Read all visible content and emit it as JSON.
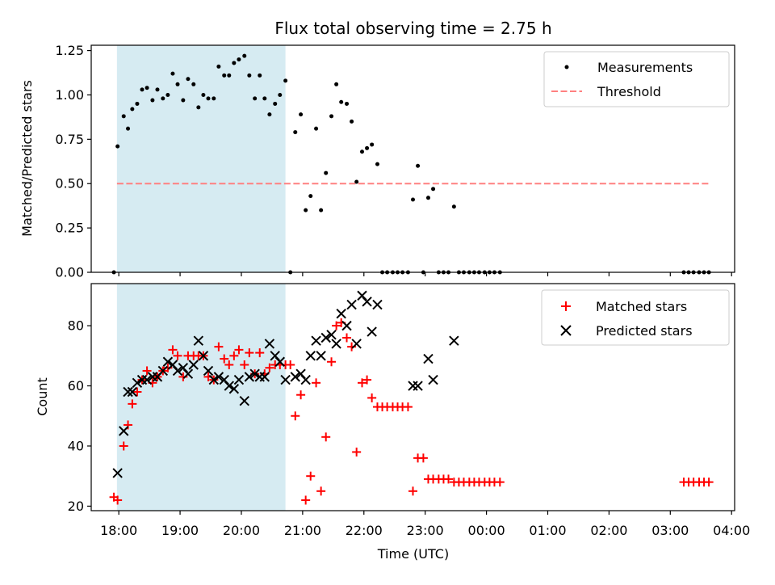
{
  "title": "Flux total observing time = 2.75 h",
  "colors": {
    "shade": "#add8e6",
    "threshold": "#ff8080",
    "measurement": "#000000",
    "matched": "#ff0000",
    "predicted": "#000000"
  },
  "chart_data": [
    {
      "type": "scatter",
      "title": "Flux total observing time = 2.75 h",
      "xlabel": "",
      "ylabel": "Matched/Predicted stars",
      "xlim": [
        17.55,
        28.05
      ],
      "ylim": [
        0,
        1.28
      ],
      "yticks": [
        0.0,
        0.25,
        0.5,
        0.75,
        1.0,
        1.25
      ],
      "ytick_labels": [
        "0.00",
        "0.25",
        "0.50",
        "0.75",
        "1.00",
        "1.25"
      ],
      "shaded_interval": [
        17.97,
        20.72
      ],
      "legend_position": "upper right",
      "series": [
        {
          "name": "Measurements",
          "marker": "dot",
          "x": [
            17.92,
            17.98,
            18.08,
            18.15,
            18.22,
            18.3,
            18.38,
            18.46,
            18.55,
            18.63,
            18.72,
            18.8,
            18.88,
            18.96,
            19.05,
            19.13,
            19.22,
            19.3,
            19.38,
            19.46,
            19.55,
            19.63,
            19.72,
            19.8,
            19.88,
            19.96,
            20.05,
            20.13,
            20.22,
            20.3,
            20.38,
            20.46,
            20.55,
            20.63,
            20.72,
            20.8,
            20.88,
            20.97,
            21.05,
            21.13,
            21.22,
            21.3,
            21.38,
            21.47,
            21.55,
            21.63,
            21.72,
            21.8,
            21.88,
            21.97,
            22.05,
            22.13,
            22.22,
            22.3,
            22.38,
            22.47,
            22.55,
            22.63,
            22.72,
            22.8,
            22.88,
            22.97,
            23.05,
            23.13,
            23.22,
            23.3,
            23.38,
            23.47,
            23.55,
            23.63,
            23.72,
            23.8,
            23.88,
            23.97,
            24.05,
            24.13,
            24.22,
            27.22,
            27.3,
            27.38,
            27.47,
            27.55,
            27.63
          ],
          "y": [
            0.0,
            0.71,
            0.88,
            0.81,
            0.92,
            0.95,
            1.03,
            1.04,
            0.97,
            1.03,
            0.98,
            1.0,
            1.12,
            1.06,
            0.97,
            1.09,
            1.06,
            0.93,
            1.0,
            0.98,
            0.98,
            1.16,
            1.11,
            1.11,
            1.18,
            1.2,
            1.22,
            1.11,
            0.98,
            1.11,
            0.98,
            0.89,
            0.95,
            1.0,
            1.08,
            0.0,
            0.79,
            0.89,
            0.35,
            0.43,
            0.81,
            0.35,
            0.56,
            0.88,
            1.06,
            0.96,
            0.95,
            0.85,
            0.51,
            0.68,
            0.7,
            0.72,
            0.61,
            0.0,
            0.0,
            0.0,
            0.0,
            0.0,
            0.0,
            0.41,
            0.6,
            0.0,
            0.42,
            0.47,
            0.0,
            0.0,
            0.0,
            0.37,
            0.0,
            0.0,
            0.0,
            0.0,
            0.0,
            0.0,
            0.0,
            0.0,
            0.0,
            0.0,
            0.0,
            0.0,
            0.0,
            0.0,
            0.0
          ]
        },
        {
          "name": "Threshold",
          "style": "dashed",
          "x": [
            17.97,
            27.63
          ],
          "y": [
            0.5,
            0.5
          ]
        }
      ]
    },
    {
      "type": "scatter",
      "title": "",
      "xlabel": "Time (UTC)",
      "ylabel": "Count",
      "xlim": [
        17.55,
        28.05
      ],
      "ylim": [
        18.5,
        94
      ],
      "yticks": [
        20,
        40,
        60,
        80
      ],
      "ytick_labels": [
        "20",
        "40",
        "60",
        "80"
      ],
      "xticks": [
        18,
        19,
        20,
        21,
        22,
        23,
        24,
        25,
        26,
        27,
        28
      ],
      "xtick_labels": [
        "18:00",
        "19:00",
        "20:00",
        "21:00",
        "22:00",
        "23:00",
        "00:00",
        "01:00",
        "02:00",
        "03:00",
        "04:00"
      ],
      "shaded_interval": [
        17.97,
        20.72
      ],
      "legend_position": "upper right",
      "series": [
        {
          "name": "Matched stars",
          "marker": "plus",
          "x": [
            17.92,
            17.98,
            18.08,
            18.15,
            18.22,
            18.3,
            18.38,
            18.46,
            18.55,
            18.63,
            18.72,
            18.8,
            18.88,
            18.96,
            19.05,
            19.13,
            19.22,
            19.3,
            19.38,
            19.46,
            19.55,
            19.63,
            19.72,
            19.8,
            19.88,
            19.96,
            20.05,
            20.13,
            20.22,
            20.3,
            20.38,
            20.46,
            20.55,
            20.63,
            20.72,
            20.8,
            20.88,
            20.97,
            21.05,
            21.13,
            21.22,
            21.3,
            21.38,
            21.47,
            21.55,
            21.63,
            21.72,
            21.8,
            21.88,
            21.97,
            22.05,
            22.13,
            22.22,
            22.3,
            22.38,
            22.47,
            22.55,
            22.63,
            22.72,
            22.8,
            22.88,
            22.97,
            23.05,
            23.13,
            23.22,
            23.3,
            23.38,
            23.47,
            23.55,
            23.63,
            23.72,
            23.8,
            23.88,
            23.97,
            24.05,
            24.13,
            24.22,
            27.22,
            27.3,
            27.38,
            27.47,
            27.55,
            27.63
          ],
          "y": [
            23,
            22,
            40,
            47,
            54,
            58,
            62,
            65,
            61,
            63,
            65,
            66,
            72,
            70,
            63,
            70,
            70,
            70,
            70,
            63,
            62,
            73,
            69,
            67,
            70,
            72,
            67,
            71,
            64,
            71,
            64,
            66,
            67,
            67,
            67,
            67,
            50,
            57,
            22,
            30,
            61,
            25,
            43,
            68,
            80,
            81,
            76,
            73,
            38,
            61,
            62,
            56,
            53,
            53,
            53,
            53,
            53,
            53,
            53,
            25,
            36,
            36,
            29,
            29,
            29,
            29,
            29,
            28,
            28,
            28,
            28,
            28,
            28,
            28,
            28,
            28,
            28,
            28,
            28,
            28,
            28,
            28,
            28
          ]
        },
        {
          "name": "Predicted stars",
          "marker": "x",
          "x": [
            17.98,
            18.08,
            18.15,
            18.22,
            18.3,
            18.38,
            18.46,
            18.55,
            18.63,
            18.72,
            18.8,
            18.88,
            18.96,
            19.05,
            19.13,
            19.22,
            19.3,
            19.38,
            19.46,
            19.55,
            19.63,
            19.72,
            19.8,
            19.88,
            19.96,
            20.05,
            20.13,
            20.22,
            20.3,
            20.38,
            20.46,
            20.55,
            20.63,
            20.72,
            20.88,
            20.97,
            21.05,
            21.13,
            21.22,
            21.3,
            21.38,
            21.47,
            21.55,
            21.63,
            21.72,
            21.8,
            21.88,
            21.97,
            22.05,
            22.13,
            22.22,
            22.8,
            22.88,
            23.05,
            23.13,
            23.47
          ],
          "y": [
            31,
            45,
            58,
            58,
            61,
            62,
            62,
            63,
            63,
            65,
            68,
            67,
            65,
            66,
            64,
            67,
            75,
            70,
            65,
            62,
            63,
            62,
            60,
            59,
            62,
            55,
            63,
            64,
            63,
            63,
            74,
            70,
            68,
            62,
            63,
            64,
            62,
            70,
            75,
            70,
            76,
            77,
            74,
            84,
            80,
            87,
            74,
            90,
            88,
            78,
            87,
            60,
            60,
            69,
            62,
            75
          ]
        }
      ]
    }
  ]
}
